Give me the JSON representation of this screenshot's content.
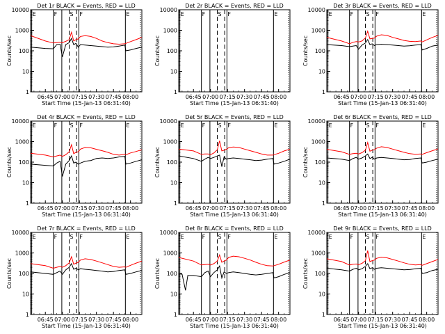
{
  "common": {
    "xlabel": "Start Time (15-Jan-13 06:31:40)",
    "ylabel": "Counts/sec",
    "x_ticks": [
      "06:45",
      "07:00",
      "07:15",
      "07:30",
      "07:45",
      "08:00"
    ],
    "x_tick_minutes": [
      45,
      60,
      75,
      90,
      105,
      120
    ],
    "xlim_minutes": [
      32,
      130
    ],
    "y_ticks": [
      "1",
      "10",
      "100",
      "1000",
      "10000"
    ],
    "ylim": [
      1,
      10000
    ],
    "y_scale": "log",
    "colors": {
      "events": "#000000",
      "lld": "#ff0000"
    },
    "markers": [
      {
        "label": "E",
        "minute": 33,
        "style": "solid"
      },
      {
        "label": "F",
        "minute": 52,
        "style": "solid"
      },
      {
        "label": "",
        "minute": 59.5,
        "style": "solid"
      },
      {
        "label": "S",
        "minute": 66,
        "style": "dashed"
      },
      {
        "label": "",
        "minute": 72.5,
        "style": "dashed"
      },
      {
        "label": "F",
        "minute": 74.5,
        "style": "solid"
      },
      {
        "label": "E",
        "minute": 115.5,
        "style": "solid"
      }
    ]
  },
  "chart_data": [
    {
      "type": "line",
      "title": "Det 1r BLACK = Events, RED = LLD",
      "series": [
        {
          "name": "Events",
          "x": [
            32,
            45,
            52,
            55,
            58,
            60,
            63,
            66,
            68,
            70,
            72,
            74,
            76,
            80,
            85,
            90,
            95,
            100,
            105,
            110,
            115,
            116,
            120,
            125,
            130
          ],
          "y": [
            150,
            130,
            125,
            200,
            210,
            50,
            200,
            250,
            400,
            200,
            230,
            150,
            200,
            190,
            180,
            170,
            160,
            150,
            155,
            170,
            190,
            100,
            110,
            130,
            150
          ]
        },
        {
          "name": "LLD",
          "x": [
            32,
            45,
            52,
            55,
            58,
            60,
            63,
            66,
            68,
            70,
            72,
            74,
            76,
            80,
            85,
            90,
            95,
            100,
            105,
            110,
            115,
            116,
            120,
            125,
            130
          ],
          "y": [
            550,
            300,
            240,
            250,
            260,
            250,
            290,
            350,
            800,
            300,
            350,
            380,
            500,
            550,
            500,
            400,
            300,
            250,
            220,
            210,
            220,
            230,
            280,
            350,
            450
          ]
        }
      ]
    },
    {
      "type": "line",
      "title": "Det 2r BLACK = Events, RED = LLD",
      "series": [
        {
          "name": "Events",
          "x": [],
          "y": []
        },
        {
          "name": "LLD",
          "x": [],
          "y": []
        }
      ]
    },
    {
      "type": "line",
      "title": "Det 3r BLACK = Events, RED = LLD",
      "series": [
        {
          "name": "Events",
          "x": [
            32,
            45,
            52,
            55,
            58,
            60,
            63,
            66,
            68,
            70,
            72,
            74,
            76,
            80,
            85,
            90,
            95,
            100,
            105,
            110,
            115,
            116,
            120,
            125,
            130
          ],
          "y": [
            200,
            180,
            160,
            170,
            180,
            120,
            190,
            240,
            350,
            200,
            220,
            180,
            200,
            210,
            200,
            190,
            180,
            170,
            175,
            190,
            200,
            110,
            130,
            170,
            190
          ]
        },
        {
          "name": "LLD",
          "x": [
            32,
            45,
            52,
            55,
            58,
            60,
            63,
            66,
            68,
            70,
            72,
            74,
            76,
            80,
            85,
            90,
            95,
            100,
            105,
            110,
            115,
            116,
            120,
            125,
            130
          ],
          "y": [
            450,
            300,
            220,
            260,
            280,
            270,
            300,
            420,
            900,
            380,
            400,
            420,
            520,
            600,
            560,
            450,
            380,
            320,
            290,
            280,
            300,
            270,
            340,
            450,
            560
          ]
        }
      ]
    },
    {
      "type": "line",
      "title": "Det 4r BLACK = Events, RED = LLD",
      "series": [
        {
          "name": "Events",
          "x": [
            32,
            45,
            52,
            55,
            58,
            60,
            63,
            66,
            68,
            70,
            72,
            74,
            76,
            80,
            85,
            90,
            95,
            100,
            105,
            110,
            115,
            116,
            120,
            125,
            130
          ],
          "y": [
            80,
            70,
            65,
            90,
            110,
            20,
            80,
            120,
            200,
            90,
            100,
            80,
            90,
            110,
            120,
            150,
            160,
            150,
            160,
            180,
            190,
            80,
            90,
            110,
            130
          ]
        },
        {
          "name": "LLD",
          "x": [
            32,
            45,
            52,
            55,
            58,
            60,
            63,
            66,
            68,
            70,
            72,
            74,
            76,
            80,
            85,
            90,
            95,
            100,
            105,
            110,
            115,
            116,
            120,
            125,
            130
          ],
          "y": [
            270,
            220,
            180,
            200,
            220,
            190,
            230,
            320,
            700,
            260,
            300,
            320,
            430,
            520,
            500,
            420,
            360,
            300,
            240,
            220,
            240,
            230,
            280,
            330,
            400
          ]
        }
      ]
    },
    {
      "type": "line",
      "title": "Det 5r BLACK = Events, RED = LLD",
      "series": [
        {
          "name": "Events",
          "x": [
            32,
            45,
            52,
            55,
            58,
            60,
            63,
            66,
            68,
            70,
            72,
            74,
            76,
            80,
            85,
            90,
            95,
            100,
            105,
            110,
            115,
            116,
            120,
            125,
            130
          ],
          "y": [
            200,
            150,
            110,
            140,
            170,
            150,
            170,
            200,
            220,
            60,
            180,
            140,
            150,
            160,
            150,
            140,
            130,
            120,
            125,
            140,
            150,
            80,
            90,
            110,
            140
          ]
        },
        {
          "name": "LLD",
          "x": [
            32,
            45,
            52,
            55,
            58,
            60,
            63,
            66,
            68,
            70,
            72,
            74,
            76,
            80,
            85,
            90,
            95,
            100,
            105,
            110,
            115,
            116,
            120,
            125,
            130
          ],
          "y": [
            430,
            350,
            240,
            250,
            250,
            230,
            280,
            400,
            1100,
            350,
            380,
            420,
            500,
            550,
            520,
            430,
            360,
            300,
            250,
            220,
            220,
            230,
            270,
            350,
            430
          ]
        }
      ]
    },
    {
      "type": "line",
      "title": "Det 6r BLACK = Events, RED = LLD",
      "series": [
        {
          "name": "Events",
          "x": [
            32,
            45,
            52,
            55,
            58,
            60,
            63,
            66,
            68,
            70,
            72,
            74,
            76,
            80,
            85,
            90,
            95,
            100,
            105,
            110,
            115,
            116,
            120,
            125,
            130
          ],
          "y": [
            160,
            140,
            120,
            150,
            170,
            140,
            160,
            200,
            250,
            150,
            170,
            140,
            160,
            170,
            160,
            150,
            140,
            130,
            135,
            150,
            160,
            90,
            100,
            120,
            140
          ]
        },
        {
          "name": "LLD",
          "x": [
            32,
            45,
            52,
            55,
            58,
            60,
            63,
            66,
            68,
            70,
            72,
            74,
            76,
            80,
            85,
            90,
            95,
            100,
            105,
            110,
            115,
            116,
            120,
            125,
            130
          ],
          "y": [
            420,
            320,
            240,
            260,
            270,
            250,
            290,
            380,
            900,
            340,
            380,
            400,
            480,
            560,
            520,
            430,
            360,
            300,
            260,
            240,
            250,
            240,
            290,
            360,
            440
          ]
        }
      ]
    },
    {
      "type": "line",
      "title": "Det 7r BLACK = Events, RED = LLD",
      "series": [
        {
          "name": "Events",
          "x": [
            32,
            45,
            52,
            55,
            58,
            60,
            63,
            66,
            68,
            70,
            72,
            74,
            76,
            80,
            85,
            90,
            95,
            100,
            105,
            110,
            115,
            116,
            120,
            125,
            130
          ],
          "y": [
            120,
            100,
            90,
            110,
            130,
            90,
            150,
            200,
            300,
            160,
            180,
            150,
            170,
            160,
            150,
            140,
            130,
            120,
            125,
            140,
            150,
            90,
            100,
            120,
            140
          ]
        },
        {
          "name": "LLD",
          "x": [
            32,
            45,
            52,
            55,
            58,
            60,
            63,
            66,
            68,
            70,
            72,
            74,
            76,
            80,
            85,
            90,
            95,
            100,
            105,
            110,
            115,
            116,
            120,
            125,
            130
          ],
          "y": [
            300,
            240,
            180,
            200,
            220,
            200,
            240,
            330,
            650,
            280,
            320,
            350,
            450,
            520,
            480,
            400,
            330,
            270,
            220,
            200,
            210,
            200,
            250,
            320,
            400
          ]
        }
      ]
    },
    {
      "type": "line",
      "title": "Det 8r BLACK = Events, RED = LLD",
      "series": [
        {
          "name": "Events",
          "x": [
            32,
            35,
            38,
            40,
            45,
            52,
            55,
            58,
            60,
            63,
            66,
            68,
            70,
            72,
            74,
            76,
            80,
            85,
            90,
            95,
            100,
            105,
            110,
            115,
            116,
            120,
            125,
            130
          ],
          "y": [
            100,
            90,
            15,
            80,
            80,
            70,
            110,
            130,
            70,
            110,
            150,
            230,
            60,
            120,
            100,
            110,
            120,
            110,
            100,
            90,
            85,
            90,
            100,
            110,
            60,
            70,
            90,
            110
          ]
        },
        {
          "name": "LLD",
          "x": [
            32,
            45,
            52,
            55,
            58,
            60,
            63,
            66,
            68,
            70,
            72,
            74,
            76,
            80,
            85,
            90,
            95,
            100,
            105,
            110,
            115,
            116,
            120,
            125,
            130
          ],
          "y": [
            600,
            400,
            260,
            270,
            280,
            260,
            300,
            400,
            800,
            350,
            400,
            450,
            600,
            700,
            650,
            550,
            450,
            350,
            280,
            240,
            230,
            240,
            280,
            360,
            450
          ]
        }
      ]
    },
    {
      "type": "line",
      "title": "Det 9r BLACK = Events, RED = LLD",
      "series": [
        {
          "name": "Events",
          "x": [
            32,
            45,
            52,
            55,
            58,
            60,
            63,
            66,
            68,
            70,
            72,
            74,
            76,
            80,
            85,
            90,
            95,
            100,
            105,
            110,
            115,
            116,
            120,
            125,
            130
          ],
          "y": [
            180,
            150,
            130,
            160,
            180,
            150,
            170,
            220,
            300,
            170,
            190,
            160,
            180,
            190,
            180,
            170,
            160,
            150,
            155,
            170,
            180,
            100,
            110,
            140,
            160
          ]
        },
        {
          "name": "LLD",
          "x": [
            32,
            45,
            52,
            55,
            58,
            60,
            63,
            66,
            68,
            70,
            72,
            74,
            76,
            80,
            85,
            90,
            95,
            100,
            105,
            110,
            115,
            116,
            120,
            125,
            130
          ],
          "y": [
            520,
            380,
            260,
            280,
            290,
            270,
            310,
            420,
            1300,
            380,
            420,
            450,
            550,
            620,
            580,
            480,
            400,
            330,
            280,
            260,
            270,
            250,
            300,
            380,
            480
          ]
        }
      ]
    }
  ]
}
